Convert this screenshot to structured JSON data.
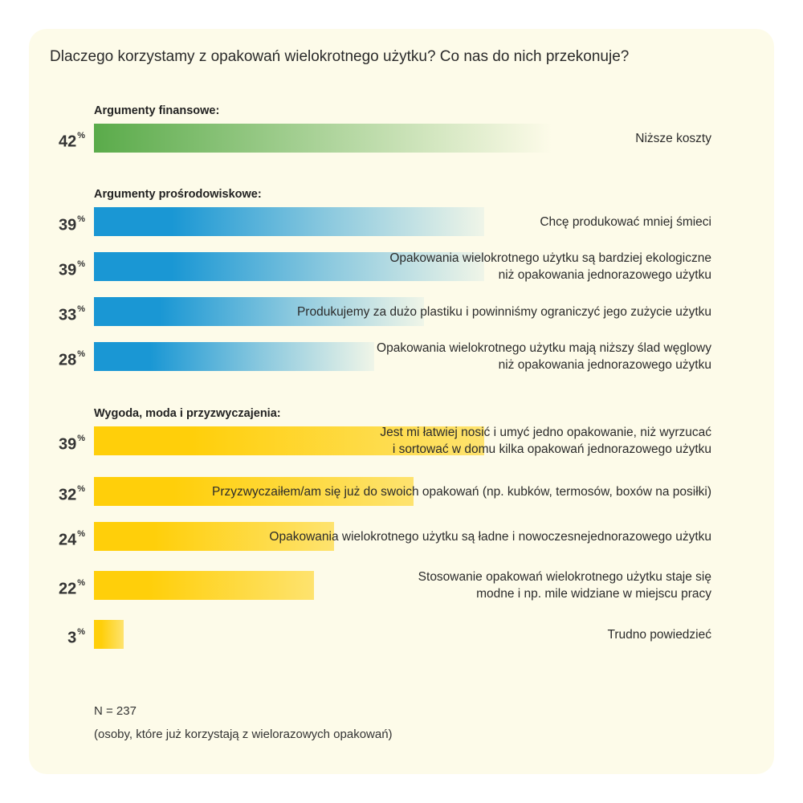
{
  "title": "Dlaczego korzystamy z opakowań wielokrotnego użytku? Co nas do nich przekonuje?",
  "pct_suffix": "%",
  "colors": {
    "financial": "#5aab4a",
    "environmental": "#1a97d4",
    "convenience": "#ffcf0a",
    "background": "#fdfbe9"
  },
  "chart_data": {
    "type": "bar",
    "orientation": "horizontal",
    "unit": "%",
    "xlim": [
      0,
      100
    ],
    "groups": [
      {
        "label": "Argumenty finansowe:",
        "color": "#5aab4a",
        "items": [
          {
            "label": "Niższe koszty",
            "value": 42
          }
        ]
      },
      {
        "label": "Argumenty prośrodowiskowe:",
        "color": "#1a97d4",
        "items": [
          {
            "label": "Chcę produkować mniej śmieci",
            "value": 39
          },
          {
            "label": "Opakowania wielokrotnego użytku są bardziej ekologiczne\nniż opakowania jednorazowego użytku",
            "value": 39
          },
          {
            "label": "Produkujemy za dużo plastiku i powinniśmy ograniczyć jego zużycie użytku",
            "value": 33
          },
          {
            "label": "Opakowania wielokrotnego użytku mają niższy ślad węglowy\nniż opakowania jednorazowego użytku",
            "value": 28
          }
        ]
      },
      {
        "label": "Wygoda, moda i przyzwyczajenia:",
        "color": "#ffcf0a",
        "items": [
          {
            "label": "Jest mi łatwiej nosić i umyć jedno opakowanie, niż wyrzucać\ni sortować w domu kilka opakowań jednorazowego użytku",
            "value": 39
          },
          {
            "label": "Przyzwyczaiłem/am się już do swoich opakowań (np. kubków, termosów, boxów na posiłki)",
            "value": 32
          },
          {
            "label": "Opakowania wielokrotnego użytku są ładne i nowoczesnejednorazowego użytku",
            "value": 24
          },
          {
            "label": "Stosowanie opakowań wielokrotnego użytku staje się\nmodne i np. mile widziane w miejscu pracy",
            "value": 22
          },
          {
            "label": "Trudno powiedzieć",
            "value": 3
          }
        ]
      }
    ]
  },
  "footnote": {
    "n": "N = 237",
    "description": "(osoby, które już korzystają z wielorazowych opakowań)"
  }
}
